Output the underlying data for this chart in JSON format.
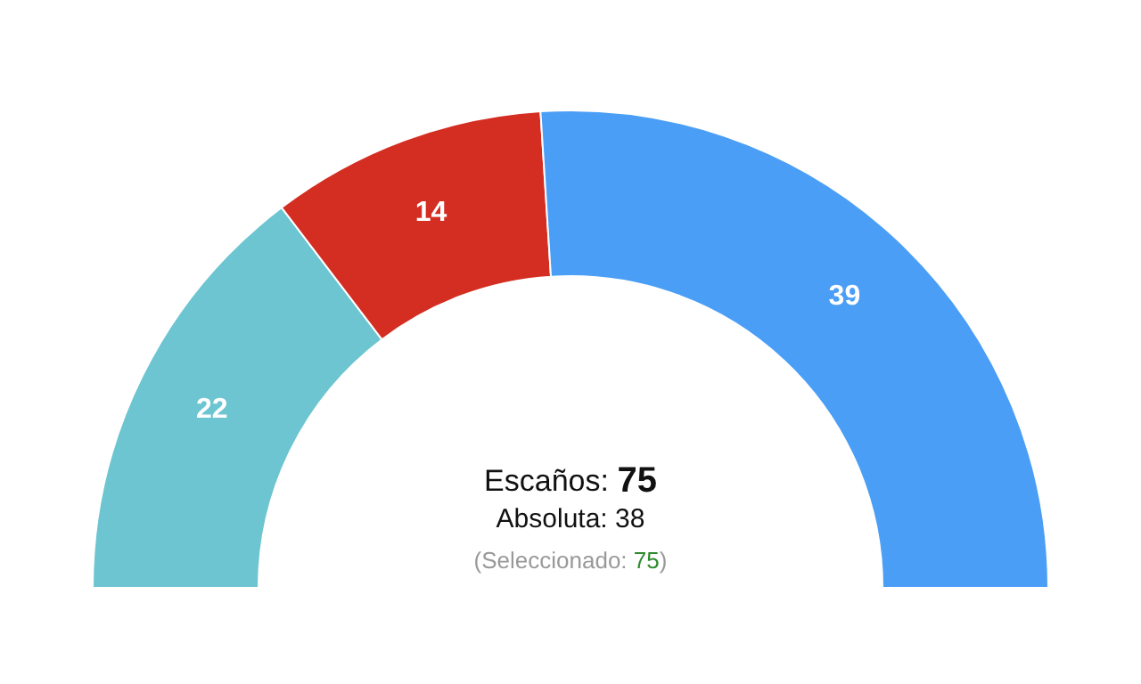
{
  "chart_data": {
    "type": "donut",
    "categories": [
      null,
      null,
      null
    ],
    "values": [
      22,
      14,
      39
    ],
    "colors": [
      "#6cc5d0",
      "#d42d21",
      "#4a9ef5"
    ],
    "data_labels": true,
    "annotations": [
      "Escaños: 75",
      "Absoluta: 38",
      "(Seleccionado: 75)"
    ]
  }
}
